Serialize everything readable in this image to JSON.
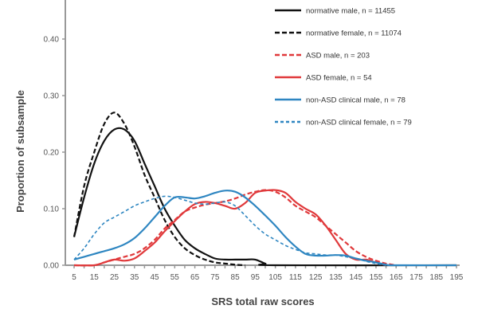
{
  "chart_data": {
    "type": "line",
    "title": "",
    "xlabel": "SRS total raw scores",
    "ylabel": "Proportion of subsample",
    "xlim": [
      5,
      195
    ],
    "ylim": [
      0,
      0.45
    ],
    "x_ticks": [
      "5",
      "15",
      "25",
      "35",
      "45",
      "55",
      "65",
      "75",
      "85",
      "95",
      "105",
      "115",
      "125",
      "135",
      "145",
      "155",
      "165",
      "175",
      "185",
      "195"
    ],
    "y_ticks": [
      "0.00",
      "0.10",
      "0.20",
      "0.30",
      "0.40"
    ],
    "grid": false,
    "legend_position": "top-right",
    "series": [
      {
        "name": "normative male, n = 11455",
        "color": "#111111",
        "dash": "solid",
        "x": [
          5,
          10,
          15,
          20,
          25,
          30,
          35,
          40,
          45,
          50,
          55,
          60,
          65,
          70,
          75,
          80,
          85,
          90,
          95,
          100,
          105,
          195
        ],
        "y": [
          0.05,
          0.12,
          0.18,
          0.22,
          0.24,
          0.24,
          0.22,
          0.18,
          0.14,
          0.1,
          0.07,
          0.045,
          0.03,
          0.02,
          0.012,
          0.01,
          0.01,
          0.01,
          0.01,
          0.003,
          0,
          0
        ]
      },
      {
        "name": "normative female, n = 11074",
        "color": "#111111",
        "dash": "dashed",
        "x": [
          5,
          10,
          15,
          20,
          25,
          30,
          35,
          40,
          45,
          50,
          55,
          60,
          65,
          70,
          75,
          80,
          85,
          90
        ],
        "y": [
          0.05,
          0.14,
          0.2,
          0.25,
          0.27,
          0.25,
          0.21,
          0.16,
          0.12,
          0.08,
          0.05,
          0.03,
          0.018,
          0.01,
          0.005,
          0.003,
          0.001,
          0
        ]
      },
      {
        "name": "ASD male, n = 203",
        "color": "#e0393b",
        "dash": "dashed",
        "x": [
          5,
          15,
          20,
          25,
          30,
          35,
          40,
          45,
          50,
          55,
          60,
          65,
          70,
          75,
          80,
          85,
          90,
          95,
          100,
          105,
          110,
          115,
          120,
          125,
          130,
          135,
          140,
          145,
          150,
          155,
          160,
          165
        ],
        "y": [
          0,
          0,
          0.005,
          0.01,
          0.015,
          0.02,
          0.03,
          0.045,
          0.065,
          0.08,
          0.095,
          0.102,
          0.107,
          0.11,
          0.113,
          0.118,
          0.125,
          0.13,
          0.133,
          0.13,
          0.12,
          0.105,
          0.095,
          0.085,
          0.07,
          0.055,
          0.04,
          0.025,
          0.015,
          0.008,
          0.003,
          0
        ]
      },
      {
        "name": "ASD female, n = 54",
        "color": "#e0393b",
        "dash": "solid",
        "x": [
          5,
          15,
          20,
          25,
          30,
          35,
          40,
          45,
          50,
          55,
          60,
          65,
          70,
          75,
          80,
          85,
          90,
          95,
          100,
          105,
          110,
          115,
          120,
          125,
          130,
          135,
          140,
          145,
          150,
          155,
          160
        ],
        "y": [
          0,
          0,
          0.005,
          0.01,
          0.008,
          0.012,
          0.025,
          0.04,
          0.06,
          0.078,
          0.095,
          0.108,
          0.112,
          0.11,
          0.105,
          0.1,
          0.11,
          0.128,
          0.132,
          0.133,
          0.128,
          0.112,
          0.1,
          0.09,
          0.07,
          0.045,
          0.02,
          0.01,
          0.01,
          0.005,
          0
        ]
      },
      {
        "name": "non-ASD clinical male, n = 78",
        "color": "#2e86c1",
        "dash": "solid",
        "x": [
          5,
          10,
          15,
          20,
          25,
          30,
          35,
          40,
          45,
          50,
          55,
          60,
          65,
          70,
          75,
          80,
          85,
          90,
          95,
          100,
          105,
          110,
          115,
          120,
          125,
          130,
          135,
          140,
          145,
          150,
          155,
          160,
          165,
          195
        ],
        "y": [
          0.01,
          0.015,
          0.02,
          0.025,
          0.03,
          0.037,
          0.048,
          0.065,
          0.085,
          0.105,
          0.12,
          0.12,
          0.118,
          0.122,
          0.128,
          0.132,
          0.13,
          0.12,
          0.105,
          0.088,
          0.07,
          0.05,
          0.033,
          0.02,
          0.017,
          0.017,
          0.018,
          0.017,
          0.012,
          0.008,
          0.005,
          0.001,
          0,
          0
        ]
      },
      {
        "name": "non-ASD clinical female, n = 79",
        "color": "#2e86c1",
        "dash": "dashed",
        "x": [
          5,
          10,
          15,
          20,
          25,
          30,
          35,
          40,
          45,
          50,
          55,
          60,
          65,
          70,
          75,
          80,
          85,
          90,
          95,
          100,
          105,
          110,
          115,
          120,
          125,
          130,
          135,
          140,
          145,
          150,
          155,
          160
        ],
        "y": [
          0.01,
          0.03,
          0.055,
          0.075,
          0.085,
          0.095,
          0.105,
          0.112,
          0.118,
          0.122,
          0.12,
          0.115,
          0.11,
          0.108,
          0.11,
          0.112,
          0.105,
          0.088,
          0.07,
          0.055,
          0.045,
          0.035,
          0.028,
          0.022,
          0.02,
          0.018,
          0.018,
          0.015,
          0.012,
          0.007,
          0.003,
          0
        ]
      }
    ]
  }
}
